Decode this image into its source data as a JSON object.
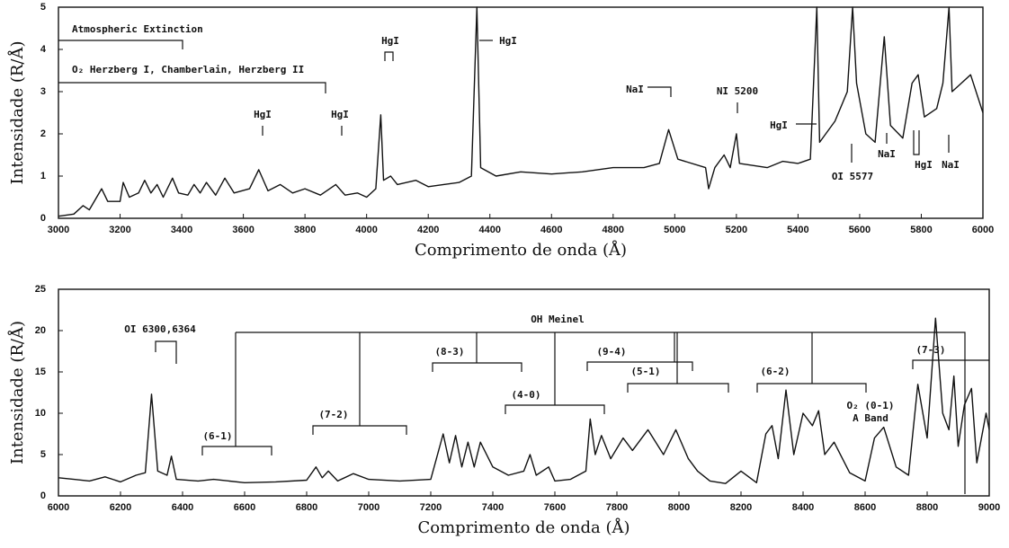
{
  "chart_data": [
    {
      "type": "line",
      "xlabel": "Comprimento de onda (Å)",
      "ylabel": "Intensidade (R/Å)",
      "xlim": [
        3000,
        6000
      ],
      "ylim": [
        0,
        5
      ],
      "xticks": [
        3000,
        3200,
        3400,
        3600,
        3800,
        4000,
        4200,
        4400,
        4600,
        4800,
        5000,
        5200,
        5400,
        5600,
        5800,
        6000
      ],
      "yticks": [
        0,
        1,
        2,
        3,
        4,
        5
      ],
      "annotations": [
        "Atmospheric Extinction",
        "O₂ Herzberg I, Chamberlain,  Herzberg II",
        "HgI",
        "HgI",
        "HgI",
        "HgI",
        "NaI",
        "NI 5200",
        "HgI",
        "OI 5577",
        "NaI",
        "HgI",
        "NaI"
      ],
      "x": [
        3000,
        3050,
        3080,
        3100,
        3140,
        3160,
        3200,
        3210,
        3230,
        3260,
        3280,
        3300,
        3320,
        3340,
        3370,
        3390,
        3420,
        3440,
        3460,
        3480,
        3510,
        3540,
        3570,
        3620,
        3650,
        3680,
        3720,
        3760,
        3800,
        3850,
        3900,
        3930,
        3970,
        4000,
        4030,
        4046,
        4055,
        4078,
        4100,
        4160,
        4200,
        4250,
        4300,
        4340,
        4358,
        4370,
        4420,
        4500,
        4600,
        4700,
        4800,
        4900,
        4950,
        4980,
        5010,
        5100,
        5110,
        5130,
        5160,
        5180,
        5200,
        5210,
        5300,
        5350,
        5400,
        5440,
        5461,
        5470,
        5520,
        5560,
        5577,
        5590,
        5620,
        5650,
        5680,
        5700,
        5740,
        5770,
        5790,
        5810,
        5850,
        5870,
        5890,
        5900,
        5930,
        5960,
        6000
      ],
      "series": [
        {
          "color": "#111111",
          "values": [
            0.05,
            0.1,
            0.3,
            0.2,
            0.7,
            0.4,
            0.4,
            0.85,
            0.5,
            0.6,
            0.9,
            0.6,
            0.8,
            0.5,
            0.95,
            0.6,
            0.55,
            0.8,
            0.6,
            0.85,
            0.55,
            0.95,
            0.6,
            0.7,
            1.15,
            0.65,
            0.8,
            0.6,
            0.7,
            0.55,
            0.8,
            0.55,
            0.6,
            0.5,
            0.7,
            2.45,
            0.9,
            1.0,
            0.8,
            0.9,
            0.75,
            0.8,
            0.85,
            1.0,
            5.0,
            1.2,
            1.0,
            1.1,
            1.05,
            1.1,
            1.2,
            1.2,
            1.3,
            2.1,
            1.4,
            1.2,
            0.7,
            1.2,
            1.5,
            1.2,
            2.0,
            1.3,
            1.2,
            1.35,
            1.3,
            1.4,
            5.0,
            1.8,
            2.3,
            3.0,
            5.0,
            3.2,
            2.0,
            1.8,
            4.3,
            2.2,
            1.9,
            3.2,
            3.4,
            2.4,
            2.6,
            3.2,
            5.0,
            3.0,
            3.2,
            3.4,
            2.5
          ]
        }
      ]
    },
    {
      "type": "line",
      "xlabel": "Comprimento de onda (Å)",
      "ylabel": "Intensidade (R/Å)",
      "xlim": [
        6000,
        9000
      ],
      "ylim": [
        0,
        25
      ],
      "xticks": [
        6000,
        6200,
        6400,
        6600,
        6800,
        7000,
        7200,
        7400,
        7600,
        7800,
        8000,
        8200,
        8400,
        8600,
        8800,
        9000
      ],
      "yticks": [
        0,
        5,
        10,
        15,
        20,
        25
      ],
      "annotations": [
        "OI 6300,6364",
        "OH Meinel",
        "(6-1)",
        "(7-2)",
        "(8-3)",
        "(4-0)",
        "(9-4)",
        "(5-1)",
        "(6-2)",
        "(7-3)",
        "O₂ (0-1)",
        "A Band"
      ],
      "x": [
        6000,
        6050,
        6100,
        6150,
        6200,
        6250,
        6280,
        6300,
        6320,
        6350,
        6364,
        6380,
        6450,
        6500,
        6600,
        6700,
        6800,
        6830,
        6850,
        6870,
        6900,
        6950,
        7000,
        7100,
        7200,
        7240,
        7260,
        7280,
        7300,
        7320,
        7340,
        7360,
        7400,
        7450,
        7500,
        7520,
        7540,
        7580,
        7600,
        7650,
        7700,
        7714,
        7730,
        7750,
        7780,
        7820,
        7850,
        7900,
        7950,
        7990,
        8030,
        8060,
        8100,
        8150,
        8200,
        8250,
        8280,
        8300,
        8320,
        8345,
        8370,
        8400,
        8430,
        8450,
        8470,
        8500,
        8550,
        8600,
        8630,
        8660,
        8700,
        8740,
        8770,
        8800,
        8827,
        8850,
        8870,
        8886,
        8900,
        8920,
        8943,
        8960,
        8990,
        9000
      ],
      "series": [
        {
          "color": "#111111",
          "values": [
            2.2,
            2.0,
            1.8,
            2.3,
            1.7,
            2.5,
            2.8,
            12.3,
            3.0,
            2.5,
            4.8,
            2.0,
            1.8,
            2.0,
            1.6,
            1.7,
            1.9,
            3.5,
            2.2,
            3.0,
            1.8,
            2.7,
            2.0,
            1.8,
            2.0,
            7.5,
            4.0,
            7.3,
            3.5,
            6.5,
            3.5,
            6.5,
            3.5,
            2.5,
            3.0,
            5.0,
            2.5,
            3.5,
            1.8,
            2.0,
            3.0,
            9.3,
            5.0,
            7.3,
            4.5,
            7.0,
            5.5,
            8.0,
            5.0,
            8.0,
            4.5,
            3.0,
            1.8,
            1.5,
            3.0,
            1.6,
            7.5,
            8.5,
            4.5,
            12.8,
            5.0,
            10.0,
            8.5,
            10.3,
            5.0,
            6.5,
            2.8,
            1.8,
            7.0,
            8.3,
            3.5,
            2.5,
            13.5,
            7.0,
            21.5,
            10.0,
            8.0,
            14.5,
            6.0,
            11.0,
            13.0,
            4.0,
            10.0,
            8.0
          ]
        }
      ]
    }
  ]
}
